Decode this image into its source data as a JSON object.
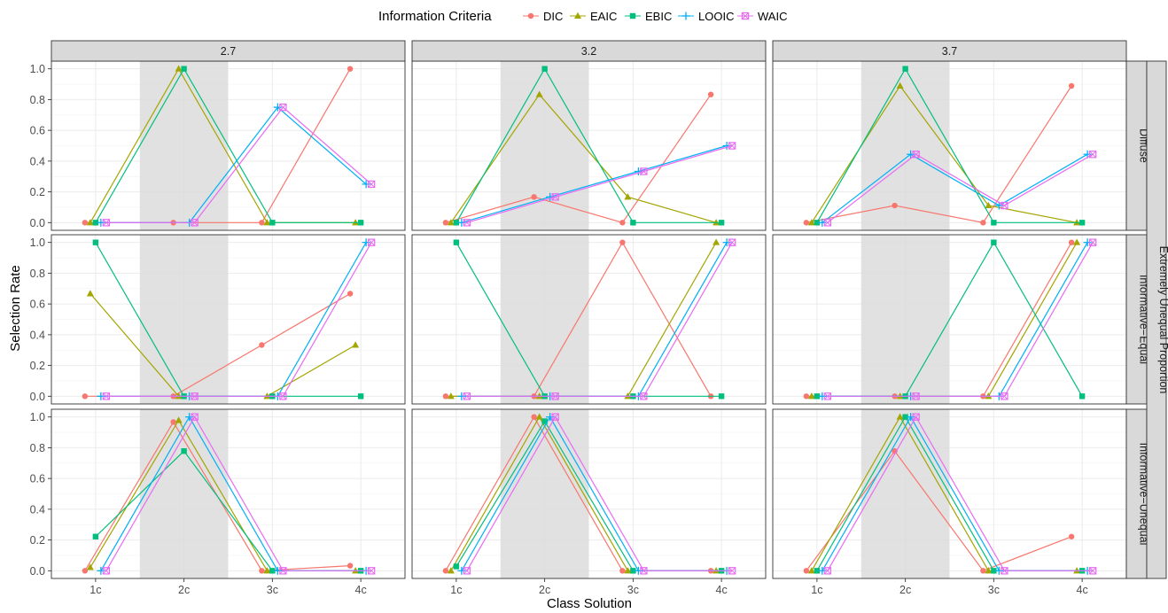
{
  "chart_data": {
    "type": "line",
    "legend": {
      "title": "Information Criteria",
      "placement": "top",
      "entries": [
        "DIC",
        "EAIC",
        "EBIC",
        "LOOIC",
        "WAIC"
      ]
    },
    "xlabel": "Class Solution",
    "ylabel": "Selection Rate",
    "categories": [
      "1c",
      "2c",
      "3c",
      "4c"
    ],
    "ylim": [
      -0.05,
      1.05
    ],
    "yticks": [
      "0.0",
      "0.2",
      "0.4",
      "0.6",
      "0.8",
      "1.0"
    ],
    "highlight_category": "2c",
    "grid": true,
    "facet_columns": [
      "2.7",
      "3.2",
      "3.7"
    ],
    "facet_rows": [
      "Diffuse",
      "Informative−Equal",
      "Informative−Unequal"
    ],
    "outer_strip": "Extremely Unequal Proportion",
    "series_colors": {
      "DIC": "#F8766D",
      "EAIC": "#A3A500",
      "EBIC": "#00BF7D",
      "LOOIC": "#00B0F6",
      "WAIC": "#E76BF3"
    },
    "panels": [
      {
        "row": "Diffuse",
        "col": "2.7",
        "series": [
          {
            "name": "DIC",
            "values": [
              0,
              0,
              0,
              1.0
            ]
          },
          {
            "name": "EAIC",
            "values": [
              0,
              1.0,
              0,
              0
            ]
          },
          {
            "name": "EBIC",
            "values": [
              0,
              1.0,
              0,
              0
            ]
          },
          {
            "name": "LOOIC",
            "values": [
              0,
              0,
              0.75,
              0.25
            ]
          },
          {
            "name": "WAIC",
            "values": [
              0,
              0,
              0.75,
              0.25
            ]
          }
        ]
      },
      {
        "row": "Diffuse",
        "col": "3.2",
        "series": [
          {
            "name": "DIC",
            "values": [
              0,
              0.167,
              0,
              0.833
            ]
          },
          {
            "name": "EAIC",
            "values": [
              0,
              0.833,
              0.167,
              0
            ]
          },
          {
            "name": "EBIC",
            "values": [
              0,
              1.0,
              0,
              0
            ]
          },
          {
            "name": "LOOIC",
            "values": [
              0,
              0.167,
              0.333,
              0.5
            ]
          },
          {
            "name": "WAIC",
            "values": [
              0,
              0.167,
              0.333,
              0.5
            ]
          }
        ]
      },
      {
        "row": "Diffuse",
        "col": "3.7",
        "series": [
          {
            "name": "DIC",
            "values": [
              0,
              0.111,
              0,
              0.889
            ]
          },
          {
            "name": "EAIC",
            "values": [
              0,
              0.889,
              0.111,
              0
            ]
          },
          {
            "name": "EBIC",
            "values": [
              0,
              1.0,
              0,
              0
            ]
          },
          {
            "name": "LOOIC",
            "values": [
              0,
              0.444,
              0.111,
              0.444
            ]
          },
          {
            "name": "WAIC",
            "values": [
              0,
              0.444,
              0.111,
              0.444
            ]
          }
        ]
      },
      {
        "row": "Informative−Equal",
        "col": "2.7",
        "series": [
          {
            "name": "DIC",
            "values": [
              0,
              0,
              0.333,
              0.667
            ]
          },
          {
            "name": "EAIC",
            "values": [
              0.667,
              0,
              0,
              0.333
            ]
          },
          {
            "name": "EBIC",
            "values": [
              1.0,
              0,
              0,
              0
            ]
          },
          {
            "name": "LOOIC",
            "values": [
              0,
              0,
              0,
              1.0
            ]
          },
          {
            "name": "WAIC",
            "values": [
              0,
              0,
              0,
              1.0
            ]
          }
        ]
      },
      {
        "row": "Informative−Equal",
        "col": "3.2",
        "series": [
          {
            "name": "DIC",
            "values": [
              0,
              0,
              1.0,
              0
            ]
          },
          {
            "name": "EAIC",
            "values": [
              0,
              0,
              0,
              1.0
            ]
          },
          {
            "name": "EBIC",
            "values": [
              1.0,
              0,
              0,
              0
            ]
          },
          {
            "name": "LOOIC",
            "values": [
              0,
              0,
              0,
              1.0
            ]
          },
          {
            "name": "WAIC",
            "values": [
              0,
              0,
              0,
              1.0
            ]
          }
        ]
      },
      {
        "row": "Informative−Equal",
        "col": "3.7",
        "series": [
          {
            "name": "DIC",
            "values": [
              0,
              0,
              0,
              1.0
            ]
          },
          {
            "name": "EAIC",
            "values": [
              0,
              0,
              0,
              1.0
            ]
          },
          {
            "name": "EBIC",
            "values": [
              0,
              0,
              1.0,
              0
            ]
          },
          {
            "name": "LOOIC",
            "values": [
              0,
              0,
              0,
              1.0
            ]
          },
          {
            "name": "WAIC",
            "values": [
              0,
              0,
              0,
              1.0
            ]
          }
        ]
      },
      {
        "row": "Informative−Unequal",
        "col": "2.7",
        "series": [
          {
            "name": "DIC",
            "values": [
              0,
              0.967,
              0,
              0.033
            ]
          },
          {
            "name": "EAIC",
            "values": [
              0.022,
              0.978,
              0,
              0
            ]
          },
          {
            "name": "EBIC",
            "values": [
              0.222,
              0.778,
              0,
              0
            ]
          },
          {
            "name": "LOOIC",
            "values": [
              0,
              1.0,
              0,
              0
            ]
          },
          {
            "name": "WAIC",
            "values": [
              0,
              1.0,
              0,
              0
            ]
          }
        ]
      },
      {
        "row": "Informative−Unequal",
        "col": "3.2",
        "series": [
          {
            "name": "DIC",
            "values": [
              0,
              1.0,
              0,
              0
            ]
          },
          {
            "name": "EAIC",
            "values": [
              0,
              1.0,
              0,
              0
            ]
          },
          {
            "name": "EBIC",
            "values": [
              0.028,
              0.972,
              0,
              0
            ]
          },
          {
            "name": "LOOIC",
            "values": [
              0,
              1.0,
              0,
              0
            ]
          },
          {
            "name": "WAIC",
            "values": [
              0,
              1.0,
              0,
              0
            ]
          }
        ]
      },
      {
        "row": "Informative−Unequal",
        "col": "3.7",
        "series": [
          {
            "name": "DIC",
            "values": [
              0,
              0.778,
              0,
              0.222
            ]
          },
          {
            "name": "EAIC",
            "values": [
              0,
              1.0,
              0,
              0
            ]
          },
          {
            "name": "EBIC",
            "values": [
              0,
              1.0,
              0,
              0
            ]
          },
          {
            "name": "LOOIC",
            "values": [
              0,
              1.0,
              0,
              0
            ]
          },
          {
            "name": "WAIC",
            "values": [
              0,
              1.0,
              0,
              0
            ]
          }
        ]
      }
    ]
  }
}
